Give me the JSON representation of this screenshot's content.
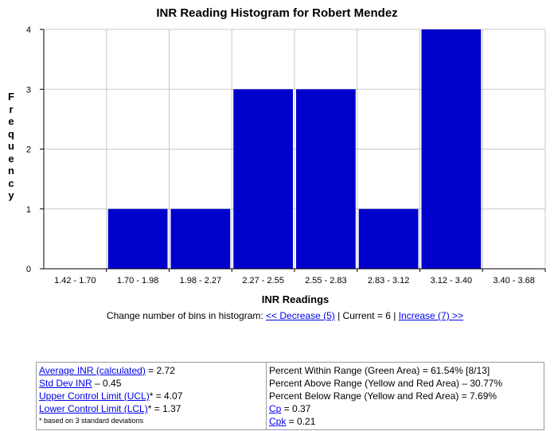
{
  "chart_data": {
    "type": "bar",
    "title": "INR Reading Histogram for Robert Mendez",
    "xlabel": "INR Readings",
    "ylabel": "Frequency",
    "categories": [
      "1.42 - 1.70",
      "1.70 - 1.98",
      "1.98 - 2.27",
      "2.27 - 2.55",
      "2.55 - 2.83",
      "2.83 - 3.12",
      "3.12 - 3.40",
      "3.40 - 3.68"
    ],
    "values": [
      0,
      1,
      1,
      3,
      3,
      1,
      4,
      0
    ],
    "ylim": [
      0,
      4
    ],
    "yticks": [
      "0",
      "1",
      "2",
      "3",
      "4"
    ],
    "grid": true,
    "bar_color": "#0000cc"
  },
  "bins_control": {
    "prefix": "Change number of bins in histogram: ",
    "decrease_label": "<< Decrease (5)",
    "middle": " | Current = 6 | ",
    "increase_label": "Increase (7) >>"
  },
  "stats": {
    "avg_label": "Average INR (calculated)",
    "avg_value": " = 2.72",
    "std_label": "Std Dev INR",
    "std_value": " – 0.45",
    "ucl_label": "Upper Control Limit (UCL)",
    "ucl_value": "* = 4.07",
    "lcl_label": "Lower Control Limit (LCL)",
    "lcl_value": "* = 1.37",
    "note": "* based on 3 standard deviations",
    "within": "Percent Within Range (Green Area) = 61.54% [8/13]",
    "above": "Percent Above Range (Yellow and Red Area) – 30.77%",
    "below": "Percent Below Range (Yellow and Red Area) = 7.69%",
    "cp_label": "Cp",
    "cp_value": " = 0.37",
    "cpk_label": "Cpk",
    "cpk_value": " = 0.21"
  }
}
